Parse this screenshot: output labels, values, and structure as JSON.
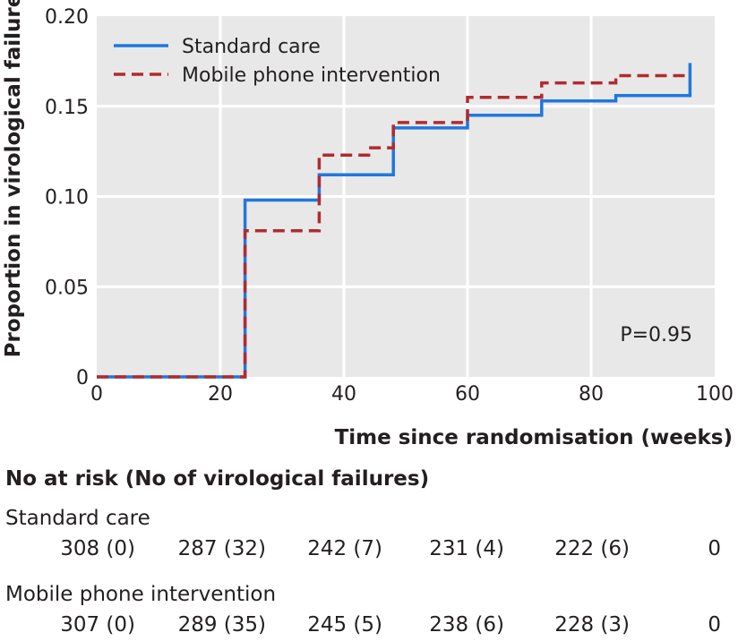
{
  "chart_data": {
    "type": "line",
    "step": true,
    "xlabel": "Time since randomisation (weeks)",
    "ylabel": "Proportion in virological failure",
    "xlim": [
      0,
      100
    ],
    "ylim": [
      0,
      0.2
    ],
    "xticks": [
      0,
      20,
      40,
      60,
      80,
      100
    ],
    "xtick_labels": [
      "0",
      "20",
      "40",
      "60",
      "80",
      "100"
    ],
    "yticks": [
      0,
      0.05,
      0.1,
      0.15,
      0.2
    ],
    "ytick_labels": [
      "0",
      "0.05",
      "0.10",
      "0.15",
      "0.20"
    ],
    "grid": true,
    "legend_position": "top-left",
    "annotation": "P=0.95",
    "series": [
      {
        "name": "Standard care",
        "color": "#1f77e0",
        "style": "solid",
        "x": [
          0,
          24,
          24,
          36,
          36,
          48,
          48,
          60,
          60,
          72,
          72,
          84,
          84,
          96,
          96
        ],
        "y": [
          0,
          0,
          0.098,
          0.098,
          0.112,
          0.112,
          0.138,
          0.138,
          0.145,
          0.145,
          0.153,
          0.153,
          0.156,
          0.156,
          0.174
        ]
      },
      {
        "name": "Mobile phone intervention",
        "color": "#b22a2e",
        "style": "dashed",
        "x": [
          0,
          24,
          24,
          36,
          36,
          44,
          44,
          48,
          48,
          60,
          60,
          72,
          72,
          84,
          84,
          96
        ],
        "y": [
          0,
          0,
          0.081,
          0.081,
          0.123,
          0.123,
          0.127,
          0.127,
          0.141,
          0.141,
          0.155,
          0.155,
          0.163,
          0.163,
          0.167,
          0.167
        ]
      }
    ]
  },
  "risk_table": {
    "title": "No at risk (No of virological failures)",
    "groups": [
      {
        "name": "Standard care",
        "values": [
          "308 (0)",
          "287 (32)",
          "242 (7)",
          "231 (4)",
          "222 (6)",
          "0"
        ]
      },
      {
        "name": "Mobile phone intervention",
        "values": [
          "307 (0)",
          "289 (35)",
          "245 (5)",
          "238 (6)",
          "228 (3)",
          "0"
        ]
      }
    ]
  }
}
